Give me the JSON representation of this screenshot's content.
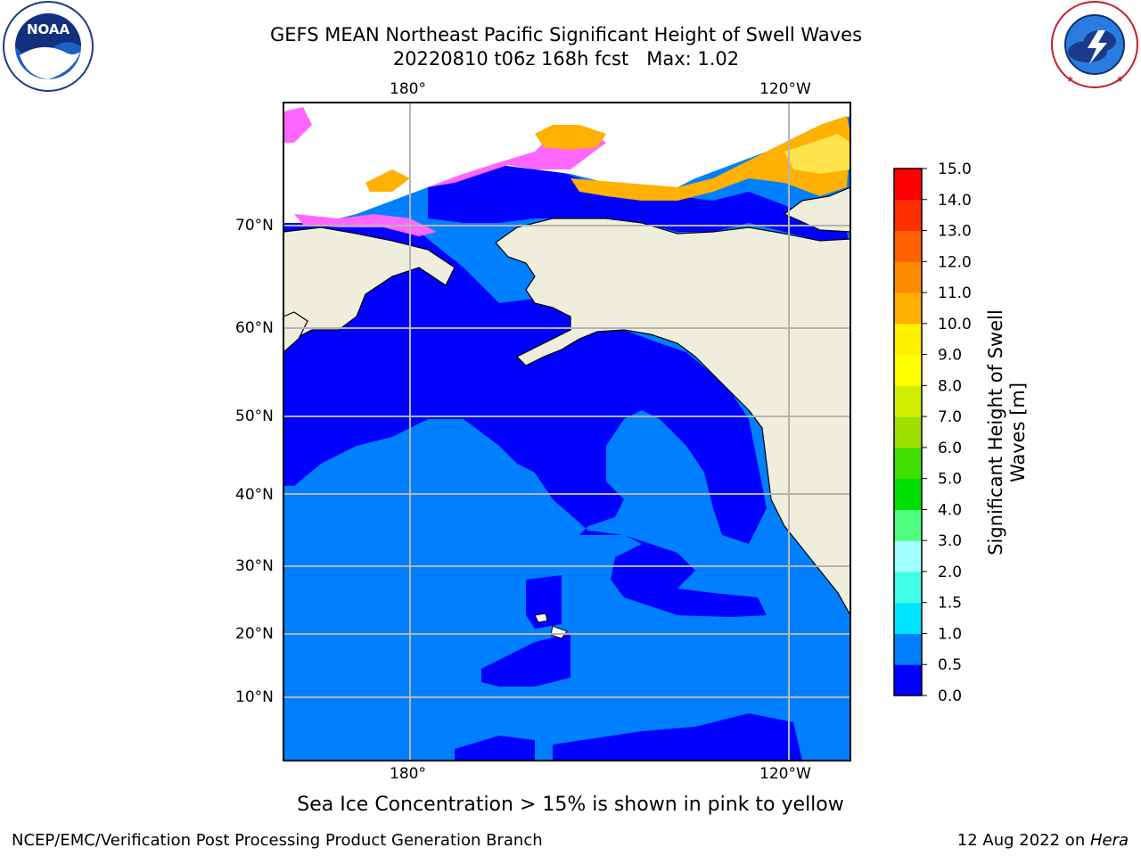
{
  "title": {
    "line1": "GEFS MEAN Northeast Pacific Significant Height of Swell Waves",
    "line2": "20220810 t06z 168h fcst   Max: 1.02"
  },
  "logos": {
    "left": {
      "text": "NOAA",
      "ring_text": "NATIONAL OCEANIC AND ATMOSPHERIC ADMINISTRATION · U.S. DEPARTMENT OF COMMERCE"
    },
    "right": {
      "ring_text": "NATIONAL WEATHER SERVICE"
    }
  },
  "map": {
    "lon_labels_top": [
      "180°",
      "120°W"
    ],
    "lon_labels_bottom": [
      "180°",
      "120°W"
    ],
    "lat_labels": [
      "70°N",
      "60°N",
      "50°N",
      "40°N",
      "30°N",
      "20°N",
      "10°N"
    ],
    "colors": {
      "ocean_low": "#0000ff",
      "ocean_mid": "#0080ff",
      "land": "#efeedd",
      "grid": "#b4b4b4",
      "ice_pink": "#ff66ff",
      "ice_orange": "#ffb000",
      "ice_yellow": "#ffe34d"
    }
  },
  "colorbar": {
    "title_line1": "Significant Height of Swell",
    "title_line2": "Waves [m]",
    "ticks": [
      "0.0",
      "0.5",
      "1.0",
      "1.5",
      "2.0",
      "3.0",
      "4.0",
      "5.0",
      "6.0",
      "7.0",
      "8.0",
      "9.0",
      "10.0",
      "11.0",
      "12.0",
      "13.0",
      "14.0",
      "15.0"
    ],
    "colors": [
      "#0000ff",
      "#0080ff",
      "#00e5ff",
      "#40ffe6",
      "#a0ffff",
      "#50ff80",
      "#00e000",
      "#40e000",
      "#a0e000",
      "#d0f000",
      "#ffff00",
      "#fff000",
      "#ffb000",
      "#ff8c00",
      "#ff6000",
      "#ff3000",
      "#ff0000"
    ]
  },
  "caption": "Sea Ice Concentration > 15% is shown in pink to yellow",
  "footer": {
    "left": "NCEP/EMC/Verification Post Processing Product Generation Branch",
    "right_date": "12 Aug 2022 on ",
    "right_machine": "Hera"
  }
}
